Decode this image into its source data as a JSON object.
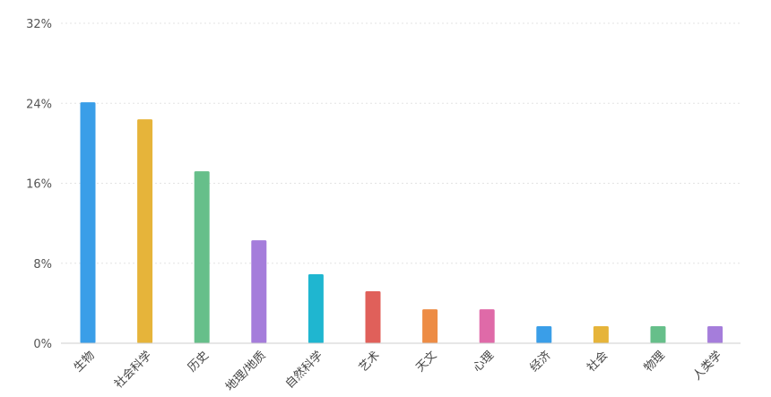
{
  "chart_data": {
    "type": "bar",
    "title": "",
    "xlabel": "",
    "ylabel": "",
    "ylim": [
      0,
      32
    ],
    "yticks": [
      "0%",
      "8%",
      "16%",
      "24%",
      "32%"
    ],
    "ytick_values": [
      0,
      8,
      16,
      24,
      32
    ],
    "grid": true,
    "categories": [
      "生物",
      "社会科学",
      "历史",
      "地理/地质",
      "自然科学",
      "艺术",
      "天文",
      "心理",
      "经济",
      "社会",
      "物理",
      "人类学"
    ],
    "values": [
      24.1,
      22.4,
      17.2,
      10.3,
      6.9,
      5.2,
      3.4,
      3.4,
      1.7,
      1.7,
      1.7,
      1.7
    ],
    "colors": [
      "#3a9ee8",
      "#e6b43a",
      "#66bf8a",
      "#a57ddb",
      "#1fb6d0",
      "#e0605a",
      "#ed8c45",
      "#df6aa8",
      "#3a9ee8",
      "#e6b43a",
      "#66bf8a",
      "#a57ddb"
    ]
  }
}
